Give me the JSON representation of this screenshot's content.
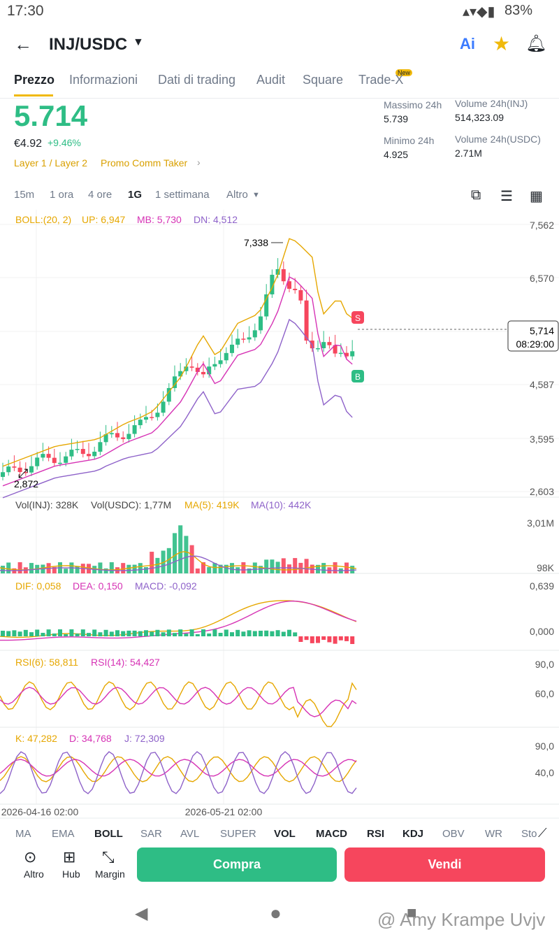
{
  "status": {
    "time": "17:30",
    "battery": "83%"
  },
  "header": {
    "pair": "INJ/USDC"
  },
  "tabs": {
    "items": [
      "Prezzo",
      "Informazioni",
      "Dati di trading",
      "Audit",
      "Square",
      "Trade-X"
    ],
    "badge": "New"
  },
  "price": {
    "last": "5.714",
    "fiat": "€4.92",
    "change": "+9.46%",
    "tags": [
      "Layer 1 / Layer 2",
      "Promo Comm Taker"
    ]
  },
  "stats": [
    {
      "label": "Massimo 24h",
      "value": "5.739"
    },
    {
      "label": "Volume 24h(INJ)",
      "value": "514,323.09"
    },
    {
      "label": "Minimo 24h",
      "value": "4.925"
    },
    {
      "label": "Volume 24h(USDC)",
      "value": "2.71M"
    }
  ],
  "intervals": [
    "15m",
    "1 ora",
    "4 ore",
    "1G",
    "1 settimana",
    "Altro"
  ],
  "chart": {
    "boll": [
      "BOLL:(20, 2)",
      "UP: 6,947",
      "MB: 5,730",
      "DN: 4,512"
    ],
    "price_axis": [
      "7,562",
      "6,570",
      "4,587",
      "3,595",
      "2,603"
    ],
    "high": "7,338",
    "low": "2,872",
    "current": "5,714",
    "countdown": "08:29:00",
    "sell_marker": "S",
    "buy_marker": "B",
    "vol": [
      "Vol(INJ): 328K",
      "Vol(USDC): 1,77M",
      "MA(5): 419K",
      "MA(10): 442K"
    ],
    "vol_axis": [
      "3,01M",
      "98K"
    ],
    "macd": [
      "DIF: 0,058",
      "DEA: 0,150",
      "MACD: -0,092"
    ],
    "macd_axis": [
      "0,639",
      "0,000"
    ],
    "rsi": [
      "RSI(6): 58,811",
      "RSI(14): 54,427"
    ],
    "rsi_axis": [
      "90,0",
      "60,0"
    ],
    "kdj": [
      "K: 47,282",
      "D: 34,768",
      "J: 72,309"
    ],
    "kdj_axis": [
      "90,0",
      "40,0"
    ],
    "dates": [
      "2026-04-16 02:00",
      "2026-05-21 02:00"
    ]
  },
  "indicators": [
    "MA",
    "EMA",
    "BOLL",
    "SAR",
    "AVL",
    "SUPER",
    "VOL",
    "MACD",
    "RSI",
    "KDJ",
    "OBV",
    "WR",
    "Sto"
  ],
  "actions": [
    "Altro",
    "Hub",
    "Margin"
  ],
  "buttons": {
    "buy": "Compra",
    "sell": "Vendi"
  },
  "watermark": "@ Amy Krampe Uvjv"
}
